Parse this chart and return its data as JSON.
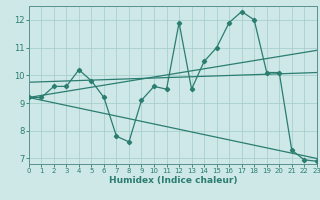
{
  "xlabel": "Humidex (Indice chaleur)",
  "bg_color": "#cee8e8",
  "line_color": "#2a7d6f",
  "grid_color": "#aacece",
  "series1_x": [
    0,
    1,
    2,
    3,
    4,
    5,
    6,
    7,
    8,
    9,
    10,
    11,
    12,
    13,
    14,
    15,
    16,
    17,
    18,
    19,
    20,
    21,
    22,
    23
  ],
  "series1_y": [
    9.2,
    9.2,
    9.6,
    9.6,
    10.2,
    9.8,
    9.2,
    7.8,
    7.6,
    9.1,
    9.6,
    9.5,
    11.9,
    9.5,
    10.5,
    11.0,
    11.9,
    12.3,
    12.0,
    10.1,
    10.1,
    7.3,
    6.95,
    6.9
  ],
  "series2_x": [
    0,
    23
  ],
  "series2_y": [
    9.2,
    7.0
  ],
  "series3_x": [
    0,
    23
  ],
  "series3_y": [
    9.2,
    10.9
  ],
  "series4_x": [
    0,
    23
  ],
  "series4_y": [
    9.75,
    10.1
  ],
  "xlim": [
    0,
    23
  ],
  "ylim": [
    6.8,
    12.5
  ],
  "yticks": [
    7,
    8,
    9,
    10,
    11,
    12
  ],
  "xticks": [
    0,
    1,
    2,
    3,
    4,
    5,
    6,
    7,
    8,
    9,
    10,
    11,
    12,
    13,
    14,
    15,
    16,
    17,
    18,
    19,
    20,
    21,
    22,
    23
  ],
  "tick_fontsize": 5.0,
  "xlabel_fontsize": 6.5,
  "lw": 0.9,
  "marker_size": 2.2
}
